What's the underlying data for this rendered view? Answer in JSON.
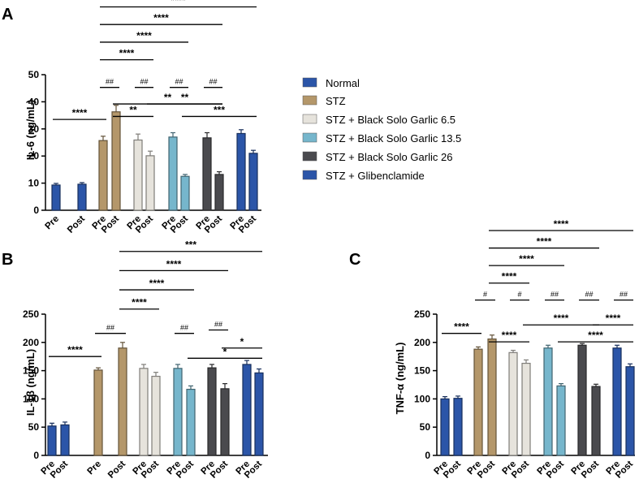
{
  "legend": {
    "entries": [
      {
        "label": "Normal",
        "color": "#2b55a8"
      },
      {
        "label": "STZ",
        "color": "#b4976a"
      },
      {
        "label": "STZ + Black Solo Garlic 6.5",
        "color": "#e6e3dc"
      },
      {
        "label": "STZ + Black Solo Garlic 13.5",
        "color": "#76b6cc"
      },
      {
        "label": "STZ + Black Solo Garlic 26",
        "color": "#4a4a4e"
      },
      {
        "label": "STZ + Glibenclamide",
        "color": "#2b55a8"
      }
    ]
  },
  "chart_data": [
    {
      "panel": "A",
      "type": "bar",
      "ylabel": "IL-6 (ng/mL)",
      "ylim": [
        0,
        50
      ],
      "yticks": [
        0,
        10,
        20,
        30,
        40,
        50
      ],
      "categories": [
        "Pre",
        "Post",
        "Pre",
        "Post",
        "Pre",
        "Post",
        "Pre",
        "Post",
        "Pre",
        "Post",
        "Pre",
        "Post"
      ],
      "group_colors": [
        "#2b55a8",
        "#b4976a",
        "#e6e3dc",
        "#76b6cc",
        "#4a4a4e",
        "#2b55a8"
      ],
      "values": [
        9.3,
        9.6,
        25.7,
        36.3,
        25.9,
        20.1,
        27.0,
        12.5,
        26.7,
        13.2,
        28.3,
        21.0
      ],
      "errors": [
        0.6,
        0.6,
        1.6,
        2.4,
        2.2,
        1.7,
        1.6,
        0.7,
        1.9,
        1.0,
        1.4,
        1.1
      ],
      "brackets": [
        {
          "from": 0,
          "to": 2,
          "label": "****",
          "y": 33.5
        },
        {
          "from": 2,
          "to": 3,
          "label": "##",
          "y": 45.3
        },
        {
          "from": 4,
          "to": 5,
          "label": "##",
          "y": 45.3
        },
        {
          "from": 6,
          "to": 7,
          "label": "##",
          "y": 45.3
        },
        {
          "from": 8,
          "to": 9,
          "label": "##",
          "y": 45.3
        },
        {
          "from": 3,
          "to": 5,
          "label": "**",
          "y": 34.6
        },
        {
          "from": 3,
          "to": 9,
          "label": "**",
          "y": 39.2
        },
        {
          "from": 5,
          "to": 9,
          "label": "**",
          "y": 39.2
        },
        {
          "from": 7,
          "to": 11,
          "label": "***",
          "y": 34.6
        },
        {
          "from": 2,
          "to": 5,
          "label": "****",
          "y": 55.5
        },
        {
          "from": 2,
          "to": 7,
          "label": "****",
          "y": 62.0
        },
        {
          "from": 2,
          "to": 9,
          "label": "****",
          "y": 68.5
        },
        {
          "from": 2,
          "to": 11,
          "label": "****",
          "y": 75.0
        }
      ]
    },
    {
      "panel": "B",
      "type": "bar",
      "ylabel": "IL-1β (ng/mL)",
      "ylim": [
        0,
        250
      ],
      "yticks": [
        0,
        50,
        100,
        150,
        200,
        250
      ],
      "categories": [
        "Pre",
        "Post",
        "Pre",
        "Post",
        "Pre",
        "Post",
        "Pre",
        "Post",
        "Pre",
        "Post",
        "Pre",
        "Post"
      ],
      "group_colors": [
        "#2b55a8",
        "#b4976a",
        "#e6e3dc",
        "#76b6cc",
        "#4a4a4e",
        "#2b55a8"
      ],
      "values": [
        52,
        54,
        151,
        190,
        154,
        140,
        154,
        117,
        155,
        118,
        161,
        146
      ],
      "errors": [
        5,
        5,
        4,
        10,
        7,
        7,
        7,
        6,
        6,
        9,
        7,
        7
      ],
      "brackets": [
        {
          "from": 0,
          "to": 2,
          "label": "****",
          "y": 175
        },
        {
          "from": 2,
          "to": 3,
          "label": "##",
          "y": 216
        },
        {
          "from": 6,
          "to": 7,
          "label": "##",
          "y": 216
        },
        {
          "from": 8,
          "to": 9,
          "label": "##",
          "y": 222
        },
        {
          "from": 9,
          "to": 11,
          "label": "*",
          "y": 190
        },
        {
          "from": 7,
          "to": 11,
          "label": "*",
          "y": 172
        },
        {
          "from": 3,
          "to": 5,
          "label": "****",
          "y": 259
        },
        {
          "from": 3,
          "to": 7,
          "label": "****",
          "y": 293
        },
        {
          "from": 3,
          "to": 9,
          "label": "****",
          "y": 327
        },
        {
          "from": 3,
          "to": 11,
          "label": "***",
          "y": 361
        }
      ]
    },
    {
      "panel": "C",
      "type": "bar",
      "ylabel": "TNF-α (ng/mL)",
      "ylim": [
        0,
        250
      ],
      "yticks": [
        0,
        50,
        100,
        150,
        200,
        250
      ],
      "categories": [
        "Pre",
        "Post",
        "Pre",
        "Post",
        "Pre",
        "Post",
        "Pre",
        "Post",
        "Pre",
        "Post",
        "Pre",
        "Post"
      ],
      "group_colors": [
        "#2b55a8",
        "#b4976a",
        "#e6e3dc",
        "#76b6cc",
        "#4a4a4e",
        "#2b55a8"
      ],
      "values": [
        100,
        101,
        188,
        206,
        182,
        163,
        190,
        123,
        195,
        122,
        190,
        157
      ],
      "errors": [
        4,
        4,
        4,
        7,
        4,
        6,
        5,
        4,
        3,
        4,
        5,
        5
      ],
      "brackets": [
        {
          "from": 0,
          "to": 2,
          "label": "****",
          "y": 216
        },
        {
          "from": 2,
          "to": 3,
          "label": "#",
          "y": 275
        },
        {
          "from": 4,
          "to": 5,
          "label": "#",
          "y": 275
        },
        {
          "from": 6,
          "to": 7,
          "label": "##",
          "y": 275
        },
        {
          "from": 8,
          "to": 9,
          "label": "##",
          "y": 275
        },
        {
          "from": 10,
          "to": 11,
          "label": "##",
          "y": 275
        },
        {
          "from": 3,
          "to": 5,
          "label": "****",
          "y": 201
        },
        {
          "from": 5,
          "to": 9,
          "label": "****",
          "y": 231
        },
        {
          "from": 7,
          "to": 11,
          "label": "****",
          "y": 201
        },
        {
          "from": 9,
          "to": 11,
          "label": "****",
          "y": 231
        },
        {
          "from": 3,
          "to": 5,
          "label": "****",
          "y": 305
        },
        {
          "from": 3,
          "to": 7,
          "label": "****",
          "y": 336
        },
        {
          "from": 3,
          "to": 9,
          "label": "****",
          "y": 367
        },
        {
          "from": 3,
          "to": 11,
          "label": "****",
          "y": 398
        }
      ]
    }
  ]
}
